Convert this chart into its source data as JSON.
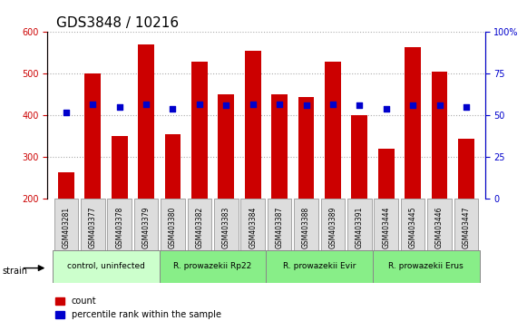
{
  "title": "GDS3848 / 10216",
  "samples": [
    "GSM403281",
    "GSM403377",
    "GSM403378",
    "GSM403379",
    "GSM403380",
    "GSM403382",
    "GSM403383",
    "GSM403384",
    "GSM403387",
    "GSM403388",
    "GSM403389",
    "GSM403391",
    "GSM403444",
    "GSM403445",
    "GSM403446",
    "GSM403447"
  ],
  "counts": [
    265,
    500,
    350,
    570,
    355,
    530,
    450,
    555,
    450,
    445,
    530,
    400,
    320,
    565,
    505,
    345
  ],
  "percentiles": [
    52,
    57,
    55,
    57,
    54,
    57,
    56,
    57,
    57,
    56,
    57,
    56,
    54,
    56,
    56,
    55
  ],
  "ylim_left": [
    200,
    600
  ],
  "ylim_right": [
    0,
    100
  ],
  "yticks_left": [
    200,
    300,
    400,
    500,
    600
  ],
  "yticks_right": [
    0,
    25,
    50,
    75,
    100
  ],
  "bar_color": "#cc0000",
  "dot_color": "#0000cc",
  "grid_color": "#aaaaaa",
  "bg_color": "#ffffff",
  "plot_bg": "#ffffff",
  "strain_groups": [
    {
      "label": "control, uninfected",
      "start": 0,
      "end": 4,
      "color": "#ccffcc"
    },
    {
      "label": "R. prowazekii Rp22",
      "start": 4,
      "end": 8,
      "color": "#88ff88"
    },
    {
      "label": "R. prowazekii Evir",
      "start": 8,
      "end": 12,
      "color": "#88ff88"
    },
    {
      "label": "R. prowazekii Erus",
      "start": 12,
      "end": 16,
      "color": "#88ff88"
    }
  ],
  "strain_label": "strain",
  "legend_count_label": "count",
  "legend_pct_label": "percentile rank within the sample",
  "xlabel_color": "#cc0000",
  "ylabel_right_color": "#0000cc",
  "title_fontsize": 11,
  "axis_fontsize": 8,
  "tick_fontsize": 7,
  "bar_width": 0.6
}
